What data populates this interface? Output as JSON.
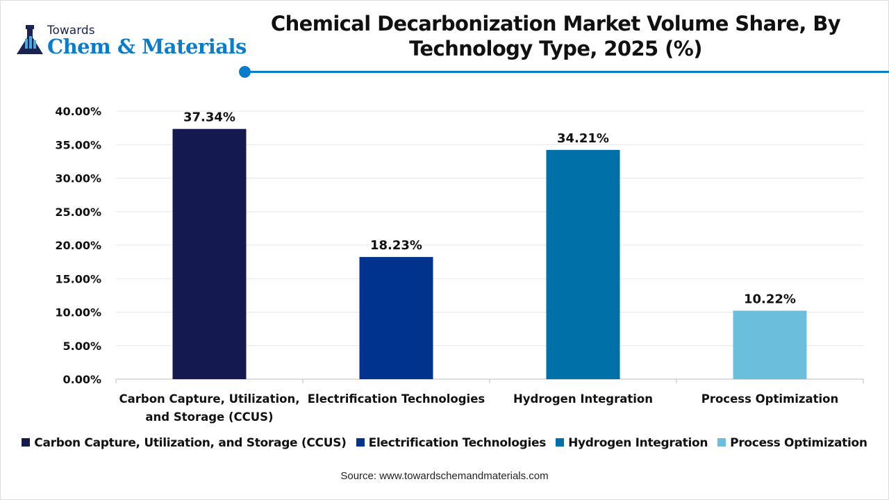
{
  "logo": {
    "small": "Towards",
    "big": "Chem & Materials"
  },
  "chart_data": {
    "type": "bar",
    "title": "Chemical Decarbonization Market Volume Share, By Technology Type, 2025 (%)",
    "title_lines": [
      "Chemical Decarbonization Market Volume Share, By",
      "Technology Type, 2025 (%)"
    ],
    "categories": [
      "Carbon Capture, Utilization, and Storage (CCUS)",
      "Electrification Technologies",
      "Hydrogen Integration",
      "Process Optimization"
    ],
    "category_tick_lines": [
      [
        "Carbon Capture, Utilization,",
        "and Storage (CCUS)"
      ],
      [
        "Electrification Technologies"
      ],
      [
        "Hydrogen Integration"
      ],
      [
        "Process Optimization"
      ]
    ],
    "values": [
      37.34,
      18.23,
      34.21,
      10.22
    ],
    "data_labels": [
      "37.34%",
      "18.23%",
      "34.21%",
      "10.22%"
    ],
    "colors": [
      "#141a4f",
      "#00338d",
      "#0070a8",
      "#6bbfdc"
    ],
    "ylim": [
      0,
      40
    ],
    "yticks": [
      "0.00%",
      "5.00%",
      "10.00%",
      "15.00%",
      "20.00%",
      "25.00%",
      "30.00%",
      "35.00%",
      "40.00%"
    ],
    "grid": true,
    "legend": "bottom"
  },
  "source": "Source: www.towardschemandmaterials.com"
}
